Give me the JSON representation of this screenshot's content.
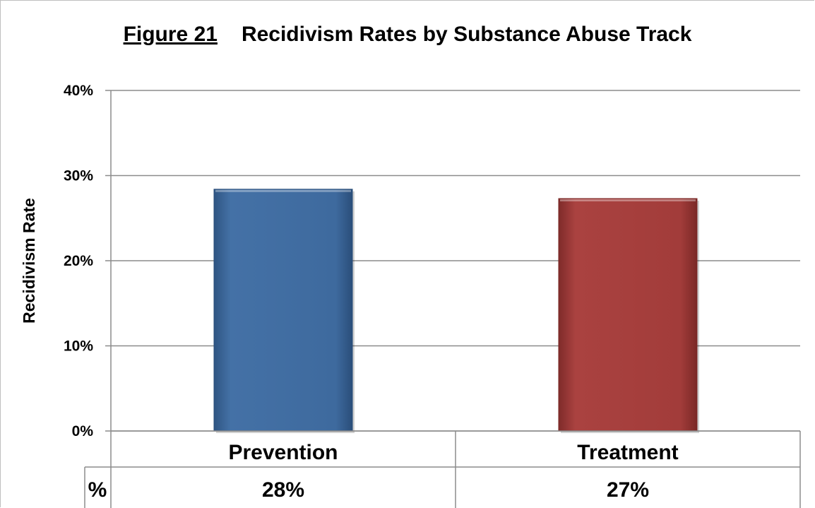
{
  "title": {
    "figure_label": "Figure 21",
    "text": "Recidivism Rates by Substance Abuse Track"
  },
  "chart_data": {
    "type": "bar",
    "title": "Figure 21 Recidivism Rates by Substance Abuse Track",
    "xlabel": "",
    "ylabel": "Recidivism Rate",
    "categories": [
      "Prevention",
      "Treatment"
    ],
    "values": [
      0.284,
      0.273
    ],
    "ylim": [
      0,
      0.4
    ],
    "yticks": [
      "0%",
      "10%",
      "20%",
      "30%",
      "40%"
    ],
    "grid": true,
    "colors": [
      "#3e6a9e",
      "#a23c3a"
    ],
    "data_table": {
      "row_label": "%",
      "values": [
        "28%",
        "27%"
      ]
    }
  }
}
